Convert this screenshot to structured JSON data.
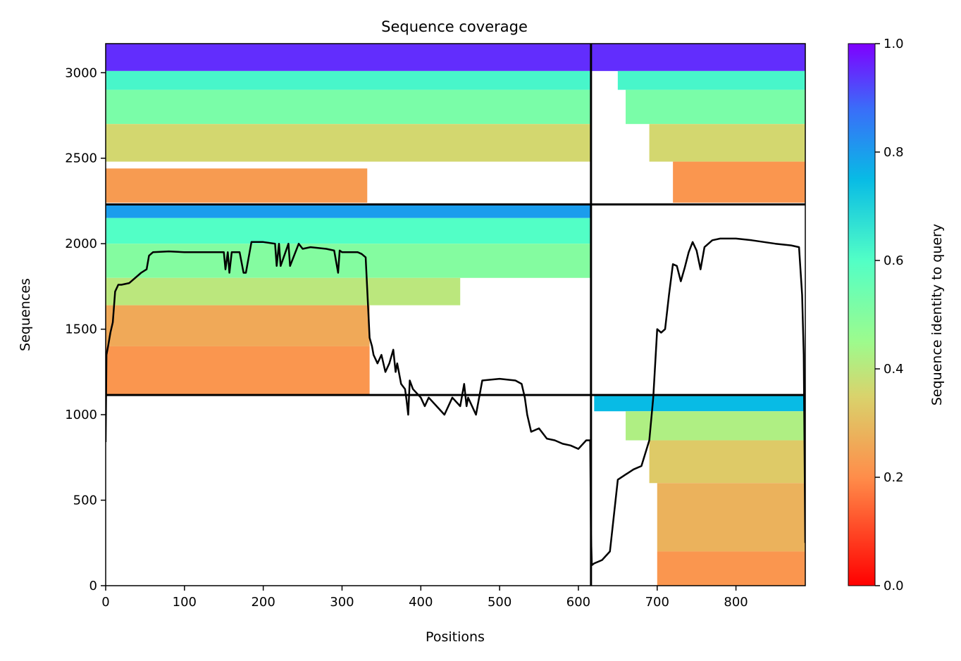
{
  "chart_data": {
    "type": "heatmap",
    "title": "Sequence coverage",
    "xlabel": "Positions",
    "ylabel": "Sequences",
    "xlim": [
      0,
      888
    ],
    "ylim": [
      0,
      3170
    ],
    "x_ticks": [
      0,
      100,
      200,
      300,
      400,
      500,
      600,
      700,
      800
    ],
    "y_ticks": [
      0,
      500,
      1000,
      1500,
      2000,
      2500,
      3000
    ],
    "grid": false,
    "colorbar": {
      "label": "Sequence identity to query",
      "range": [
        0.0,
        1.0
      ],
      "ticks": [
        "0.0",
        "0.2",
        "0.4",
        "0.6",
        "0.8",
        "1.0"
      ],
      "colormap": "rainbow"
    },
    "chain_boundaries": {
      "x": [
        616
      ],
      "y": [
        1115,
        2230
      ]
    },
    "blocks": [
      {
        "name": "chain1-pair-top",
        "x_range": [
          0,
          616
        ],
        "y_range": [
          2230,
          3170
        ],
        "bands": [
          {
            "y": [
              3010,
              3170
            ],
            "identity": 0.95,
            "x_end": 616
          },
          {
            "y": [
              2900,
              3010
            ],
            "identity": 0.62,
            "x_end": 616
          },
          {
            "y": [
              2700,
              2900
            ],
            "identity": 0.52,
            "x_end": 616
          },
          {
            "y": [
              2480,
              2700
            ],
            "identity": 0.36,
            "x_end": 616
          },
          {
            "y": [
              2240,
              2440
            ],
            "identity": 0.23,
            "x_end": 332
          }
        ]
      },
      {
        "name": "chain1-unpaired",
        "x_range": [
          0,
          616
        ],
        "y_range": [
          1115,
          2230
        ],
        "bands": [
          {
            "y": [
              2150,
              2230
            ],
            "identity": 0.8,
            "x_end": 616
          },
          {
            "y": [
              2000,
              2150
            ],
            "identity": 0.6,
            "x_end": 616
          },
          {
            "y": [
              1800,
              2000
            ],
            "identity": 0.5,
            "x_end": 616
          },
          {
            "y": [
              1640,
              1800
            ],
            "identity": 0.4,
            "x_end": 450
          },
          {
            "y": [
              1400,
              1640
            ],
            "identity": 0.26,
            "x_end": 335
          },
          {
            "y": [
              1115,
              1400
            ],
            "identity": 0.22,
            "x_end": 335
          }
        ]
      },
      {
        "name": "chain2-pair-top",
        "x_range": [
          616,
          888
        ],
        "y_range": [
          2230,
          3170
        ],
        "bands": [
          {
            "y": [
              3010,
              3170
            ],
            "identity": 0.95,
            "x_start": 616
          },
          {
            "y": [
              2900,
              3010
            ],
            "identity": 0.62,
            "x_start": 650
          },
          {
            "y": [
              2700,
              2900
            ],
            "identity": 0.52,
            "x_start": 660
          },
          {
            "y": [
              2480,
              2700
            ],
            "identity": 0.36,
            "x_start": 690
          },
          {
            "y": [
              2240,
              2480
            ],
            "identity": 0.22,
            "x_start": 720
          }
        ]
      },
      {
        "name": "chain2-unpaired",
        "x_range": [
          616,
          888
        ],
        "y_range": [
          0,
          1115
        ],
        "bands": [
          {
            "y": [
              1020,
              1115
            ],
            "identity": 0.75,
            "x_start": 620
          },
          {
            "y": [
              850,
              1020
            ],
            "identity": 0.42,
            "x_start": 660
          },
          {
            "y": [
              600,
              850
            ],
            "identity": 0.33,
            "x_start": 690
          },
          {
            "y": [
              200,
              600
            ],
            "identity": 0.28,
            "x_start": 700
          },
          {
            "y": [
              0,
              200
            ],
            "identity": 0.22,
            "x_start": 700
          }
        ]
      }
    ],
    "coverage_line": {
      "x": [
        0,
        1,
        3,
        6,
        9,
        12,
        16,
        20,
        30,
        45,
        52,
        55,
        60,
        80,
        100,
        140,
        150,
        152,
        155,
        157,
        160,
        170,
        175,
        178,
        185,
        200,
        215,
        217,
        220,
        222,
        232,
        234,
        245,
        250,
        260,
        280,
        290,
        295,
        297,
        300,
        320,
        325,
        330,
        335,
        338,
        340,
        345,
        350,
        355,
        360,
        365,
        368,
        370,
        375,
        380,
        382,
        384,
        386,
        390,
        400,
        405,
        410,
        420,
        430,
        440,
        450,
        455,
        458,
        460,
        470,
        478,
        500,
        520,
        528,
        532,
        535,
        540,
        550,
        560,
        570,
        580,
        590,
        600,
        610,
        615,
        616,
        617,
        620,
        630,
        640,
        650,
        660,
        670,
        680,
        690,
        695,
        700,
        705,
        710,
        715,
        720,
        725,
        730,
        735,
        740,
        745,
        750,
        755,
        760,
        770,
        780,
        800,
        820,
        850,
        870,
        880,
        884,
        886,
        888
      ],
      "y": [
        840,
        1350,
        1400,
        1480,
        1540,
        1720,
        1760,
        1760,
        1770,
        1830,
        1850,
        1930,
        1950,
        1955,
        1950,
        1950,
        1950,
        1850,
        1950,
        1830,
        1950,
        1950,
        1830,
        1830,
        2010,
        2010,
        2000,
        1870,
        2000,
        1870,
        2000,
        1870,
        2000,
        1970,
        1980,
        1970,
        1960,
        1830,
        1960,
        1950,
        1950,
        1940,
        1920,
        1450,
        1400,
        1350,
        1300,
        1350,
        1250,
        1300,
        1380,
        1250,
        1300,
        1180,
        1150,
        1080,
        1000,
        1200,
        1150,
        1100,
        1050,
        1100,
        1050,
        1000,
        1100,
        1050,
        1180,
        1050,
        1100,
        1000,
        1200,
        1210,
        1200,
        1180,
        1100,
        1000,
        900,
        920,
        860,
        850,
        830,
        820,
        800,
        850,
        850,
        300,
        120,
        130,
        150,
        200,
        620,
        650,
        680,
        700,
        850,
        1100,
        1500,
        1480,
        1500,
        1700,
        1880,
        1870,
        1780,
        1860,
        1950,
        2010,
        1960,
        1850,
        1980,
        2020,
        2030,
        2030,
        2020,
        2000,
        1990,
        1980,
        1700,
        1350,
        250
      ]
    }
  },
  "colors": {
    "line": "#000000",
    "axes": "#000000",
    "background": "#ffffff"
  }
}
